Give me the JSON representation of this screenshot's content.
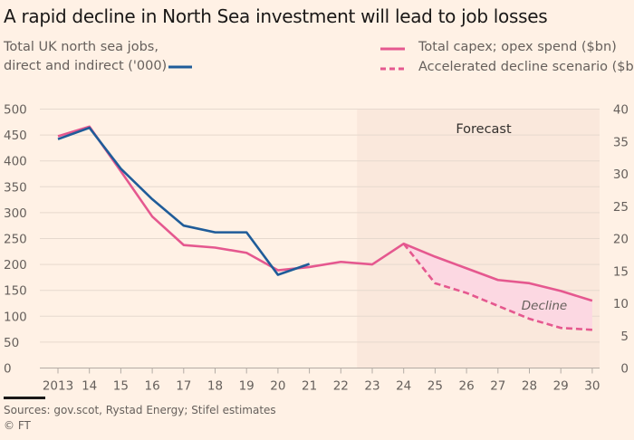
{
  "chart_data": {
    "type": "line",
    "title": "A rapid decline in North Sea investment will lead to job losses",
    "x_labels": [
      "2013",
      "14",
      "15",
      "16",
      "17",
      "18",
      "19",
      "20",
      "21",
      "22",
      "23",
      "24",
      "25",
      "26",
      "27",
      "28",
      "29",
      "30"
    ],
    "left_axis": {
      "label": "Total UK north sea jobs, direct and indirect ('000)",
      "ticks": [
        0,
        50,
        100,
        150,
        200,
        250,
        300,
        350,
        400,
        450,
        500
      ],
      "range": [
        0,
        500
      ]
    },
    "right_axis": {
      "label": "Total capex; opex spend ($bn)",
      "ticks": [
        0,
        5,
        10,
        15,
        20,
        25,
        30,
        35,
        40
      ],
      "range": [
        0,
        40
      ]
    },
    "series": [
      {
        "name": "Total UK north sea jobs, direct and indirect ('000)",
        "axis": "left",
        "color": "#1f5c99",
        "style": "solid",
        "x": [
          "2013",
          "14",
          "15",
          "16",
          "17",
          "18",
          "19",
          "20",
          "21"
        ],
        "values": [
          442,
          464,
          385,
          326,
          275,
          262,
          262,
          180,
          201
        ]
      },
      {
        "name": "Total capex; opex spend ($bn)",
        "axis": "right",
        "color": "#e5588f",
        "style": "solid",
        "x": [
          "2013",
          "14",
          "15",
          "16",
          "17",
          "18",
          "19",
          "20",
          "21",
          "22",
          "23",
          "24",
          "25",
          "26",
          "27",
          "28",
          "29",
          "30"
        ],
        "values": [
          35.8,
          37.3,
          30.4,
          23.4,
          19.0,
          18.6,
          17.8,
          15.1,
          15.6,
          16.4,
          16.0,
          19.2,
          17.2,
          15.4,
          13.6,
          13.1,
          11.9,
          10.4
        ]
      },
      {
        "name": "Accelerated decline scenario ($bn)",
        "axis": "right",
        "color": "#e5588f",
        "style": "dashed",
        "x": [
          "24",
          "25",
          "26",
          "27",
          "28",
          "29",
          "30"
        ],
        "values": [
          19.2,
          13.1,
          11.6,
          9.6,
          7.6,
          6.2,
          5.9
        ]
      }
    ],
    "annotations": {
      "forecast_label": "Forecast",
      "forecast_from": "22",
      "decline_label": "Decline"
    }
  },
  "legend": {
    "jobs_line1": "Total UK north sea jobs,",
    "jobs_line2": "direct and indirect ('000)",
    "capex": "Total capex; opex spend ($bn)",
    "accelerated": "Accelerated decline scenario ($bn)"
  },
  "sources": "Sources: gov.scot, Rystad Energy; Stifel estimates",
  "credit": "© FT",
  "colors": {
    "background": "#fff1e5",
    "forecast_shade": "#fae8dc",
    "jobs": "#1f5c99",
    "capex": "#e5588f",
    "decline_fill": "#fcd8e2",
    "grid": "#e6d9ce"
  }
}
